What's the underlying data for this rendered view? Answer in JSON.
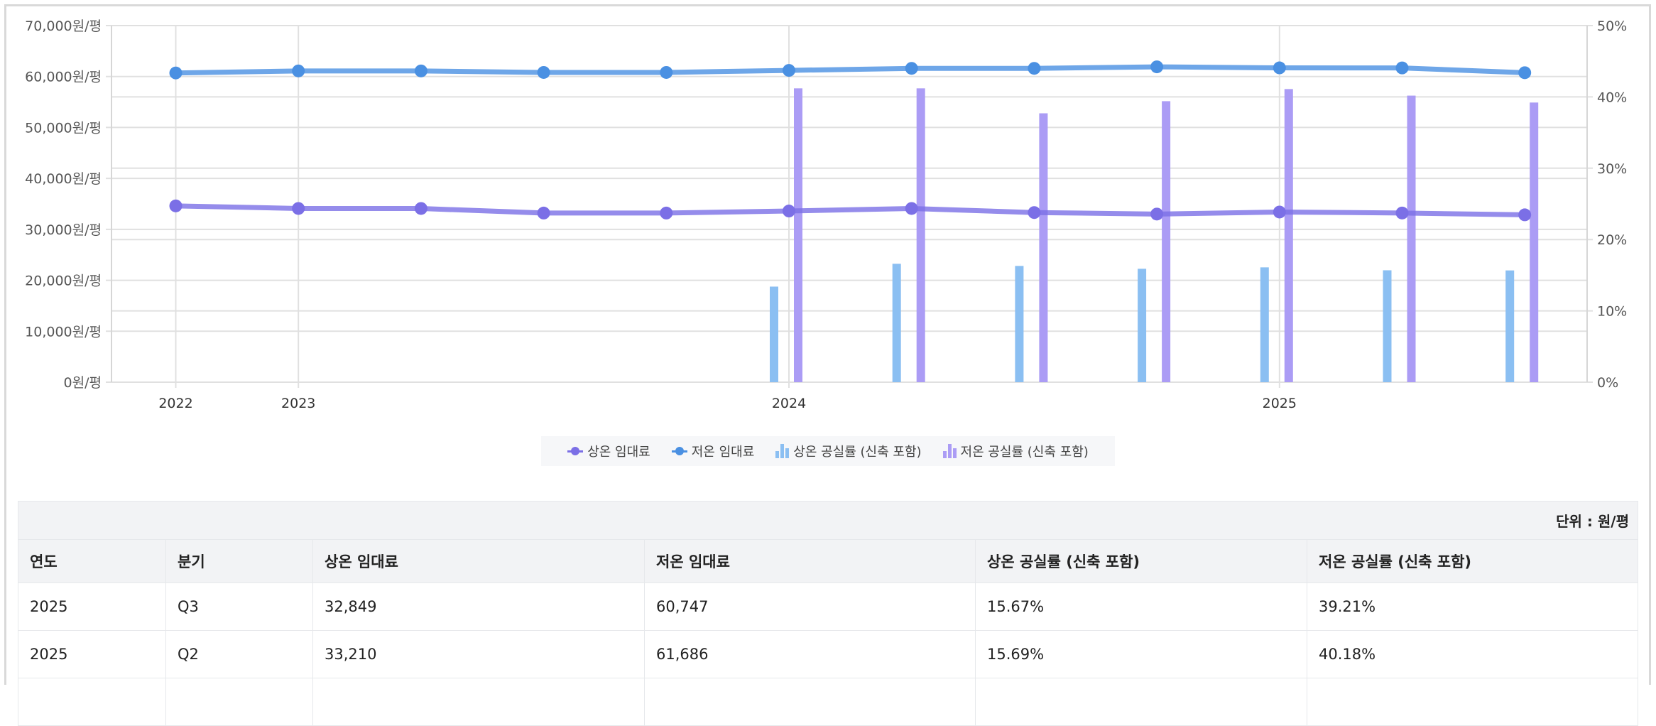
{
  "chart_data": {
    "type": "bar+line",
    "categories": [
      "2022",
      "2023",
      "",
      "",
      "",
      "2024",
      "",
      "",
      "",
      "2025",
      "",
      ""
    ],
    "y_left": {
      "ticks": [
        "0원/평",
        "10,000원/평",
        "20,000원/평",
        "30,000원/평",
        "40,000원/평",
        "50,000원/평",
        "60,000원/평",
        "70,000원/평"
      ],
      "range": [
        0,
        70000
      ]
    },
    "y_right": {
      "ticks": [
        "0%",
        "10%",
        "20%",
        "30%",
        "40%",
        "50%"
      ],
      "range": [
        0,
        50
      ]
    },
    "series": [
      {
        "name": "상온 임대료",
        "type": "line",
        "axis": "left",
        "color": "#7b6fe6",
        "values": [
          34600,
          34100,
          34100,
          33200,
          33200,
          33600,
          34100,
          33300,
          33000,
          33400,
          33210,
          32849
        ]
      },
      {
        "name": "저온 임대료",
        "type": "line",
        "axis": "left",
        "color": "#4a90e2",
        "values": [
          60700,
          61100,
          61100,
          60800,
          60800,
          61200,
          61600,
          61600,
          61900,
          61700,
          61686,
          60747
        ]
      },
      {
        "name": "상온 공실률 (신축 포함)",
        "type": "bar",
        "axis": "right",
        "color": "#8bbff2",
        "values": [
          null,
          null,
          null,
          null,
          null,
          13.4,
          16.6,
          16.3,
          15.9,
          16.1,
          15.69,
          15.67
        ]
      },
      {
        "name": "저온 공실률 (신축 포함)",
        "type": "bar",
        "axis": "right",
        "color": "#ab9cf5",
        "values": [
          null,
          null,
          null,
          null,
          null,
          41.2,
          41.2,
          37.7,
          39.4,
          41.1,
          40.18,
          39.21
        ]
      }
    ],
    "legend_position": "bottom-center"
  },
  "table": {
    "unit": "단위 : 원/평",
    "headers": [
      "연도",
      "분기",
      "상온 임대료",
      "저온 임대료",
      "상온 공실률 (신축 포함)",
      "저온 공실률 (신축 포함)"
    ],
    "rows": [
      [
        "2025",
        "Q3",
        "32,849",
        "60,747",
        "15.67%",
        "39.21%"
      ],
      [
        "2025",
        "Q2",
        "33,210",
        "61,686",
        "15.69%",
        "40.18%"
      ]
    ]
  }
}
